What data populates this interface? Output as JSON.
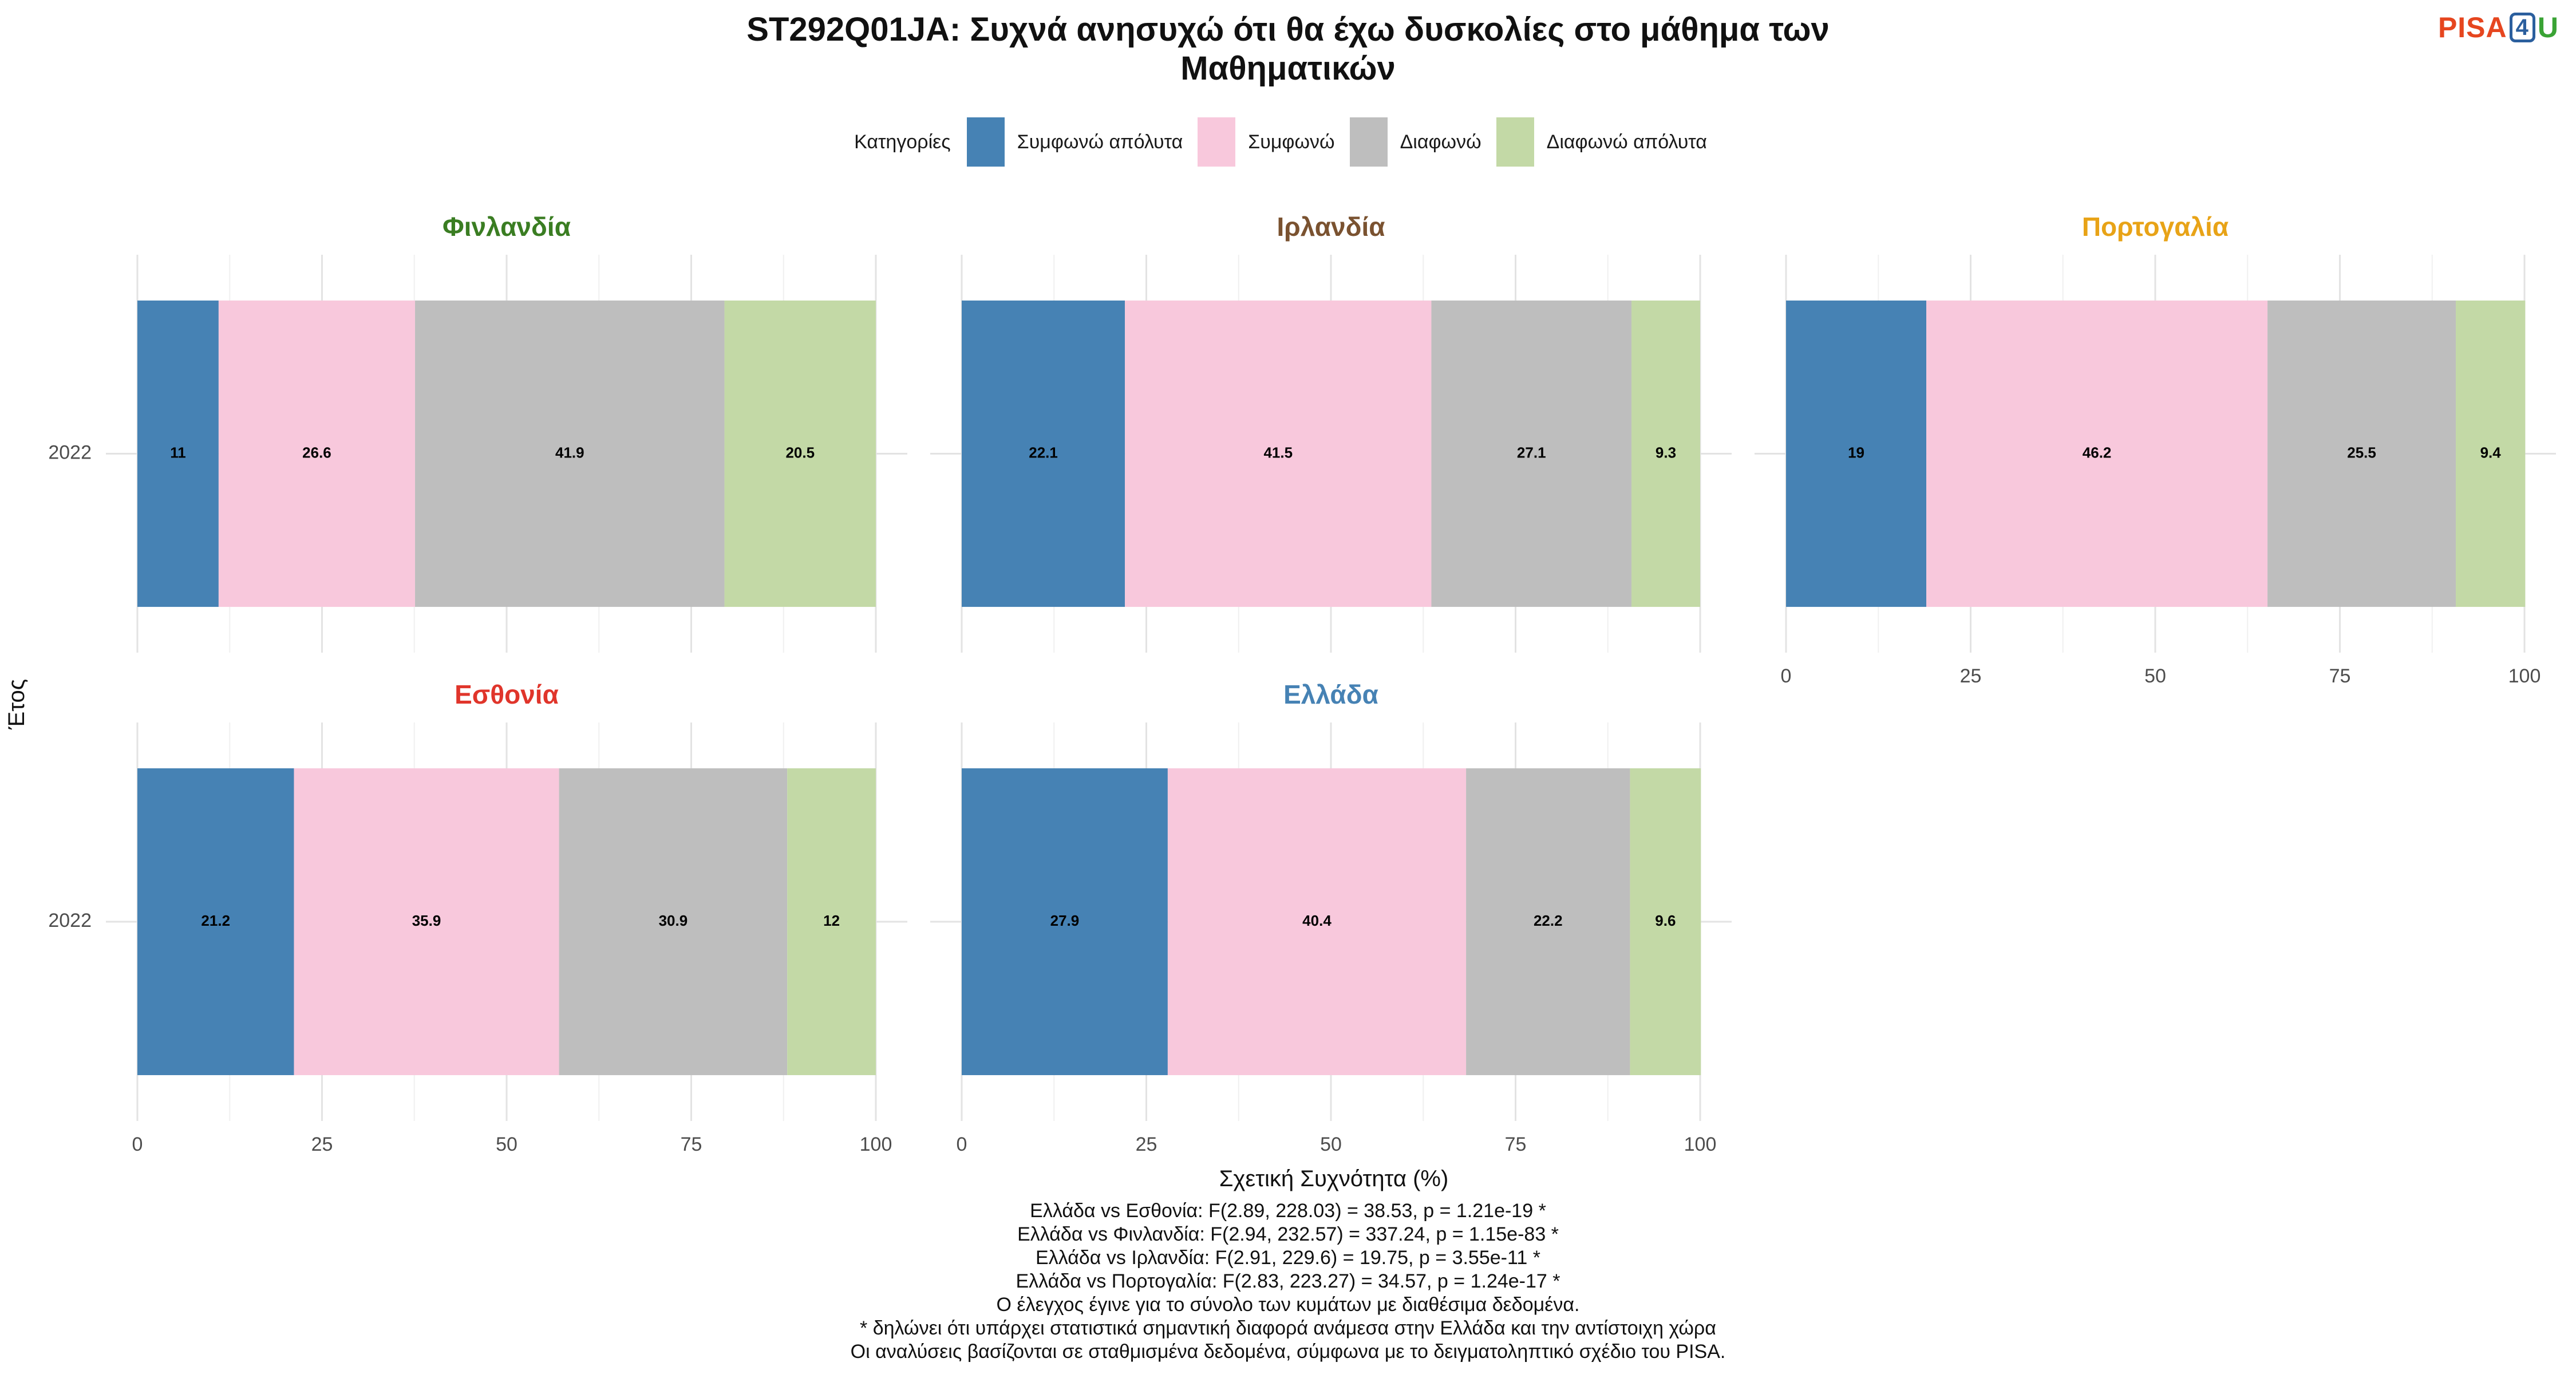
{
  "title": "ST292Q01JA: Συχνά ανησυχώ ότι θα έχω δυσκολίες στο μάθημα των Μαθηματικών",
  "title_lines": [
    "ST292Q01JA: Συχνά ανησυχώ ότι θα έχω δυσκολίες στο μάθημα των",
    "Μαθηματικών"
  ],
  "logo": {
    "part1": "PISA",
    "part2": "4",
    "part3": "U"
  },
  "legend": {
    "title": "Κατηγορίες",
    "placement": "top-center",
    "items": [
      {
        "label": "Συμφωνώ απόλυτα",
        "color": "#4682b4"
      },
      {
        "label": "Συμφωνώ",
        "color": "#f8c8dc"
      },
      {
        "label": "Διαφωνώ",
        "color": "#bebebe"
      },
      {
        "label": "Διαφωνώ απόλυτα",
        "color": "#c3d9a6"
      }
    ]
  },
  "chart_data": {
    "type": "bar",
    "orientation": "horizontal",
    "stacked": true,
    "xlabel": "Σχετική Συχνότητα (%)",
    "ylabel": "Έτος",
    "xlim": [
      0,
      100
    ],
    "xticks": [
      0,
      25,
      50,
      75,
      100
    ],
    "grid": true,
    "categories": [
      "Συμφωνώ απόλυτα",
      "Συμφωνώ",
      "Διαφωνώ",
      "Διαφωνώ απόλυτα"
    ],
    "panels": [
      {
        "country": "Φινλανδία",
        "color": "#3a7d22",
        "year": "2022",
        "values": [
          11,
          26.6,
          41.9,
          20.5
        ],
        "labels": [
          "11",
          "26.6",
          "41.9",
          "20.5"
        ],
        "show_x_axis": false
      },
      {
        "country": "Ιρλανδία",
        "color": "#7a5230",
        "year": "2022",
        "values": [
          22.1,
          41.5,
          27.1,
          9.3
        ],
        "labels": [
          "22.1",
          "41.5",
          "27.1",
          "9.3"
        ],
        "show_x_axis": false
      },
      {
        "country": "Πορτογαλία",
        "color": "#e8a317",
        "year": "2022",
        "values": [
          19,
          46.2,
          25.5,
          9.4
        ],
        "labels": [
          "19",
          "46.2",
          "25.5",
          "9.4"
        ],
        "show_x_axis": true
      },
      {
        "country": "Εσθονία",
        "color": "#e0352b",
        "year": "2022",
        "values": [
          21.2,
          35.9,
          30.9,
          12
        ],
        "labels": [
          "21.2",
          "35.9",
          "30.9",
          "12"
        ],
        "show_x_axis": true
      },
      {
        "country": "Ελλάδα",
        "color": "#4682b4",
        "year": "2022",
        "values": [
          27.9,
          40.4,
          22.2,
          9.6
        ],
        "labels": [
          "27.9",
          "40.4",
          "22.2",
          "9.6"
        ],
        "show_x_axis": true
      }
    ]
  },
  "footer": [
    "Ελλάδα vs Εσθονία: F(2.89, 228.03) = 38.53, p = 1.21e-19 *",
    "Ελλάδα vs Φινλανδία: F(2.94, 232.57) = 337.24, p = 1.15e-83 *",
    "Ελλάδα vs Ιρλανδία: F(2.91, 229.6) = 19.75, p = 3.55e-11 *",
    "Ελλάδα vs Πορτογαλία: F(2.83, 223.27) = 34.57, p = 1.24e-17 *",
    "Ο έλεγχος έγινε για το σύνολο των κυμάτων με διαθέσιμα δεδομένα.",
    "* δηλώνει ότι υπάρχει στατιστικά σημαντική διαφορά ανάμεσα στην Ελλάδα και την αντίστοιχη χώρα",
    "Οι αναλύσεις βασίζονται σε σταθμισμένα δεδομένα, σύμφωνα με το δειγματοληπτικό σχέδιο του PISA."
  ]
}
